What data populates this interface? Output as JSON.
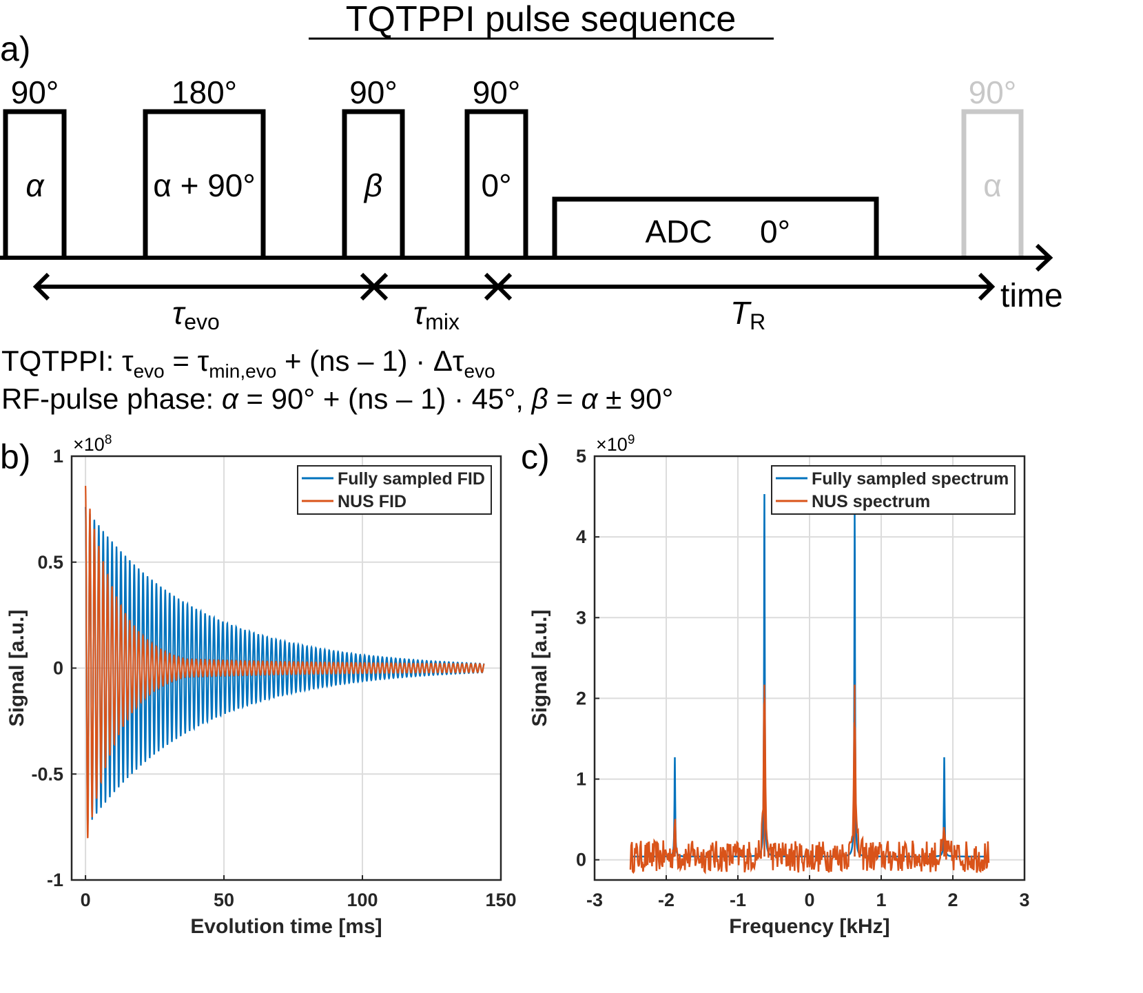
{
  "figure": {
    "title": "TQTPPI pulse sequence",
    "panel_labels": {
      "a": "a)",
      "b": "b)",
      "c": "c)"
    },
    "sequence": {
      "pulses": [
        {
          "flip": "90°",
          "phase": "α",
          "phase_italic": true,
          "faded": false
        },
        {
          "flip": "180°",
          "phase": "α + 90°",
          "phase_italic": false,
          "faded": false
        },
        {
          "flip": "90°",
          "phase": "β",
          "phase_italic": true,
          "faded": false
        },
        {
          "flip": "90°",
          "phase": "0°",
          "phase_italic": false,
          "faded": false
        },
        {
          "flip": "90°",
          "phase": "α",
          "phase_italic": false,
          "faded": true
        }
      ],
      "adc": {
        "label": "ADC",
        "phase": "0°"
      },
      "time_label": "time",
      "intervals": [
        {
          "symbol": "τ",
          "sub": "evo"
        },
        {
          "symbol": "τ",
          "sub": "mix"
        },
        {
          "symbol": "T",
          "sub": "R"
        }
      ],
      "faded_color": "#c8c8c8"
    },
    "equations": {
      "line1": {
        "prefix": "TQTPPI: ",
        "lhs": "τ",
        "lhs_sub": "evo",
        "eq": " = ",
        "t1": "τ",
        "t1_sub": "min,evo",
        "rest": " + (ns – 1) · Δτ",
        "rest_sub": "evo"
      },
      "line2": {
        "prefix": "RF-pulse phase: ",
        "alpha": "α",
        "mid": " = 90° + (ns – 1) · 45°, ",
        "beta": "β",
        "eq": " = ",
        "alpha2": "α",
        "tail": " ± 90°"
      }
    }
  },
  "chart_data": [
    {
      "id": "b",
      "type": "line",
      "title": "",
      "xlabel": "Evolution time [ms]",
      "ylabel": "Signal [a.u.]",
      "exponent_label": "×10",
      "exponent": "8",
      "xlim": [
        -5,
        150
      ],
      "ylim": [
        -1,
        1
      ],
      "xticks": [
        0,
        50,
        100,
        150
      ],
      "xtick_labels": [
        "0",
        "50",
        "100",
        "150"
      ],
      "yticks": [
        -1,
        -0.5,
        0,
        0.5,
        1
      ],
      "ytick_labels": [
        "-1",
        "-0.5",
        "0",
        "0.5",
        "1"
      ],
      "grid": true,
      "legend": "top-right",
      "series": [
        {
          "name": "Fully sampled FID",
          "color": "#0072BD",
          "model": "damped oscillation",
          "x_range_ms": [
            0,
            144
          ],
          "initial_amplitude": 0.76,
          "decay_time_ms": 40,
          "oscillation_cycles": 90
        },
        {
          "name": "NUS FID",
          "color": "#D95319",
          "model": "damped oscillation (non-uniformly sampled)",
          "x_range_ms": [
            0,
            144
          ],
          "initial_amplitude": 0.86,
          "decay_time_ms": 12,
          "oscillation_cycles": 90
        }
      ]
    },
    {
      "id": "c",
      "type": "line",
      "title": "",
      "xlabel": "Frequency [kHz]",
      "ylabel": "Signal [a.u.]",
      "exponent_label": "×10",
      "exponent": "9",
      "xlim": [
        -3,
        3
      ],
      "ylim": [
        -0.25,
        5
      ],
      "xticks": [
        -3,
        -2,
        -1,
        0,
        1,
        2,
        3
      ],
      "xtick_labels": [
        "-3",
        "-2",
        "-1",
        "0",
        "1",
        "2",
        "3"
      ],
      "yticks": [
        0,
        1,
        2,
        3,
        4,
        5
      ],
      "ytick_labels": [
        "0",
        "1",
        "2",
        "3",
        "4",
        "5"
      ],
      "grid": true,
      "legend": "top-right",
      "series": [
        {
          "name": "Fully sampled spectrum",
          "color": "#0072BD",
          "x_range": [
            -2.5,
            2.5
          ],
          "baseline": 0.04,
          "peaks": [
            {
              "x": -1.88,
              "y": 1.27
            },
            {
              "x": -0.63,
              "y": 4.53
            },
            {
              "x": 0.63,
              "y": 4.3
            },
            {
              "x": 1.88,
              "y": 1.27
            }
          ]
        },
        {
          "name": "NUS spectrum",
          "color": "#D95319",
          "x_range": [
            -2.5,
            2.5
          ],
          "baseline": 0.04,
          "noise_amplitude": 0.2,
          "peaks": [
            {
              "x": -1.88,
              "y": 0.38
            },
            {
              "x": -0.63,
              "y": 2.17
            },
            {
              "x": 0.63,
              "y": 2.17
            },
            {
              "x": 1.88,
              "y": 0.38
            }
          ]
        }
      ]
    }
  ]
}
